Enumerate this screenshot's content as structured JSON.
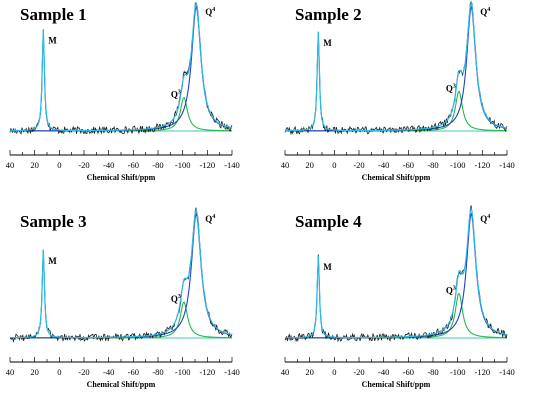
{
  "chart_data": [
    {
      "type": "line",
      "title": "Sample 1",
      "xlabel": "Chemical Shift/ppm",
      "ylabel": "",
      "xlim": [
        40,
        -140
      ],
      "x_ticks": [
        40,
        20,
        0,
        -20,
        -40,
        -60,
        -80,
        -100,
        -120,
        -140
      ],
      "tick_labels": [
        "40",
        "20",
        "0",
        "-20",
        "-40",
        "-60",
        "-80",
        "-100",
        "-120",
        "-140"
      ],
      "peaks": [
        {
          "label": "M",
          "sup": "",
          "shift": 13,
          "height": 0.82,
          "width": 1.1,
          "color": "#3ec7c2"
        },
        {
          "label": "Q",
          "sup": "3",
          "shift": -101,
          "height": 0.27,
          "width": 3.5,
          "color": "#27b84a"
        },
        {
          "label": "Q",
          "sup": "4",
          "shift": -111,
          "height": 1.0,
          "width": 4.6,
          "color": "#1f3fc9"
        }
      ],
      "series": [
        {
          "values_desc": "experimental",
          "color": "#1a1a1a"
        },
        {
          "values_desc": "fit",
          "color": "#2fb9e6"
        },
        {
          "values_desc": "baseline",
          "color": "#e0201b"
        }
      ],
      "grid": false
    },
    {
      "type": "line",
      "title": "Sample 2",
      "xlabel": "Chemical Shift/ppm",
      "ylabel": "",
      "xlim": [
        40,
        -140
      ],
      "x_ticks": [
        40,
        20,
        0,
        -20,
        -40,
        -60,
        -80,
        -100,
        -120,
        -140
      ],
      "tick_labels": [
        "40",
        "20",
        "0",
        "-20",
        "-40",
        "-60",
        "-80",
        "-100",
        "-120",
        "-140"
      ],
      "peaks": [
        {
          "label": "M",
          "sup": "",
          "shift": 13,
          "height": 0.8,
          "width": 1.1,
          "color": "#3ec7c2"
        },
        {
          "label": "Q",
          "sup": "3",
          "shift": -101,
          "height": 0.32,
          "width": 3.5,
          "color": "#27b84a"
        },
        {
          "label": "Q",
          "sup": "4",
          "shift": -111,
          "height": 1.0,
          "width": 4.4,
          "color": "#1f3fc9"
        }
      ],
      "series": [
        {
          "values_desc": "experimental",
          "color": "#1a1a1a"
        },
        {
          "values_desc": "fit",
          "color": "#2fb9e6"
        },
        {
          "values_desc": "baseline",
          "color": "#e0201b"
        }
      ],
      "grid": false
    },
    {
      "type": "line",
      "title": "Sample 3",
      "xlabel": "Chemical Shift/ppm",
      "ylabel": "",
      "xlim": [
        40,
        -140
      ],
      "x_ticks": [
        40,
        20,
        0,
        -20,
        -40,
        -60,
        -80,
        -100,
        -120,
        -140
      ],
      "tick_labels": [
        "40",
        "20",
        "0",
        "-20",
        "-40",
        "-60",
        "-80",
        "-100",
        "-120",
        "-140"
      ],
      "peaks": [
        {
          "label": "M",
          "sup": "",
          "shift": 13,
          "height": 0.71,
          "width": 1.1,
          "color": "#3ec7c2"
        },
        {
          "label": "Q",
          "sup": "3",
          "shift": -101,
          "height": 0.29,
          "width": 3.6,
          "color": "#27b84a"
        },
        {
          "label": "Q",
          "sup": "4",
          "shift": -111,
          "height": 1.0,
          "width": 4.7,
          "color": "#1f3fc9"
        }
      ],
      "series": [
        {
          "values_desc": "experimental",
          "color": "#1a1a1a"
        },
        {
          "values_desc": "fit",
          "color": "#2fb9e6"
        },
        {
          "values_desc": "baseline",
          "color": "#e0201b"
        }
      ],
      "grid": false
    },
    {
      "type": "line",
      "title": "Sample 4",
      "xlabel": "Chemical Shift/ppm",
      "ylabel": "",
      "xlim": [
        40,
        -140
      ],
      "x_ticks": [
        40,
        20,
        0,
        -20,
        -40,
        -60,
        -80,
        -100,
        -120,
        -140
      ],
      "tick_labels": [
        "40",
        "20",
        "0",
        "-20",
        "-40",
        "-60",
        "-80",
        "-100",
        "-120",
        "-140"
      ],
      "peaks": [
        {
          "label": "M",
          "sup": "",
          "shift": 13,
          "height": 0.66,
          "width": 1.1,
          "color": "#3ec7c2"
        },
        {
          "label": "Q",
          "sup": "3",
          "shift": -101,
          "height": 0.36,
          "width": 3.6,
          "color": "#27b84a"
        },
        {
          "label": "Q",
          "sup": "4",
          "shift": -111,
          "height": 1.0,
          "width": 4.6,
          "color": "#1f3fc9"
        }
      ],
      "series": [
        {
          "values_desc": "experimental",
          "color": "#1a1a1a"
        },
        {
          "values_desc": "fit",
          "color": "#2fb9e6"
        },
        {
          "values_desc": "baseline",
          "color": "#e0201b"
        }
      ],
      "grid": false
    }
  ]
}
